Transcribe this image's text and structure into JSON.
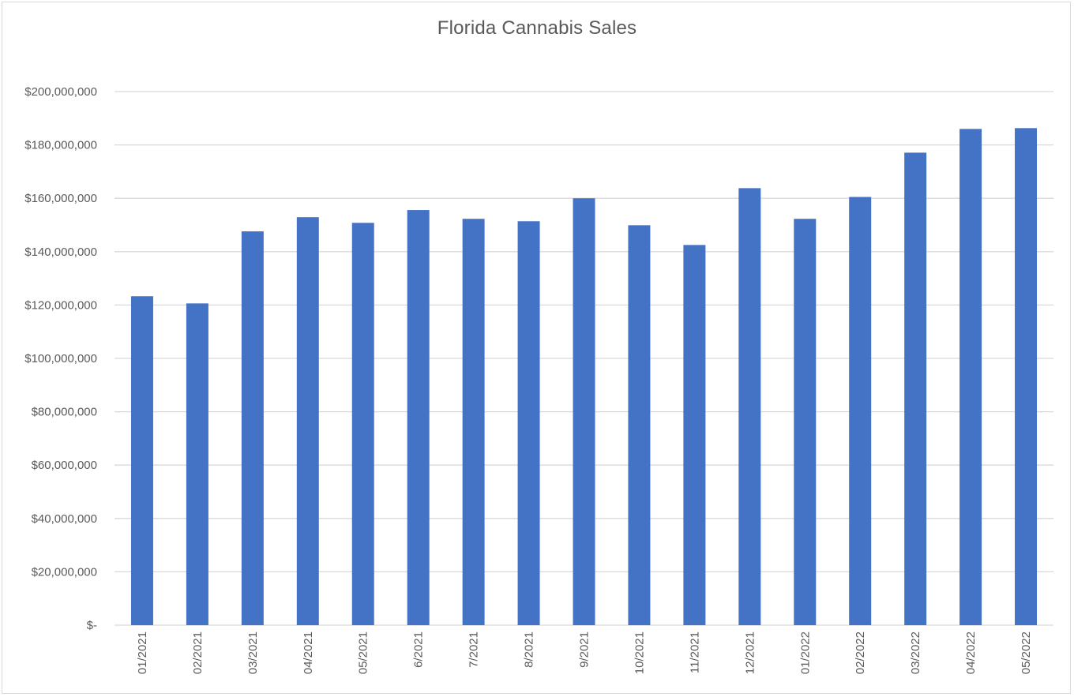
{
  "chart_data": {
    "type": "bar",
    "title": "Florida Cannabis Sales",
    "xlabel": "",
    "ylabel": "",
    "categories": [
      "01/2021",
      "02/2021",
      "03/2021",
      "04/2021",
      "05/2021",
      "6/2021",
      "7/2021",
      "8/2021",
      "9/2021",
      "10/2021",
      "11/2021",
      "12/2021",
      "01/2022",
      "02/2022",
      "03/2022",
      "04/2022",
      "05/2022"
    ],
    "values": [
      123300000,
      120600000,
      147600000,
      152900000,
      150800000,
      155600000,
      152300000,
      151400000,
      160000000,
      149900000,
      142500000,
      163800000,
      152300000,
      160500000,
      177100000,
      186000000,
      186300000
    ],
    "ylim": [
      0,
      200000000
    ],
    "yticks": [
      0,
      20000000,
      40000000,
      60000000,
      80000000,
      100000000,
      120000000,
      140000000,
      160000000,
      180000000,
      200000000
    ],
    "ytick_labels": [
      "$-",
      "$20,000,000",
      "$40,000,000",
      "$60,000,000",
      "$80,000,000",
      "$100,000,000",
      "$120,000,000",
      "$140,000,000",
      "$160,000,000",
      "$180,000,000",
      "$200,000,000"
    ],
    "bar_color": "#4472C4",
    "grid": true,
    "gridline_color": "#d9d9d9",
    "legend": "none"
  }
}
